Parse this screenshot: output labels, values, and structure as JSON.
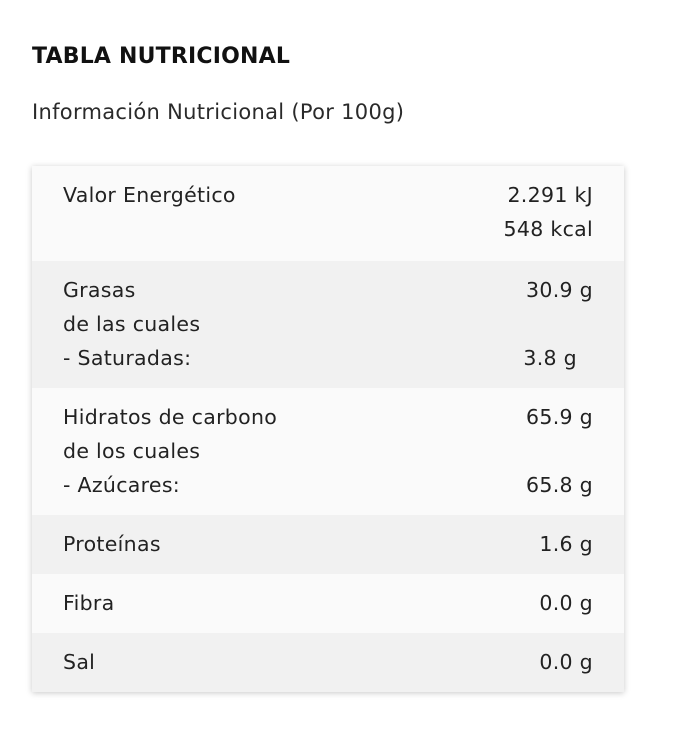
{
  "heading": "TABLA NUTRICIONAL",
  "subheading": "Información Nutricional (Por 100g)",
  "table": {
    "energy": {
      "label": "Valor Energético",
      "value_kj": "2.291 kJ",
      "value_kcal": "548 kcal"
    },
    "fat": {
      "label": "Grasas",
      "value": "30.9 g",
      "of_which": "de las cuales",
      "sub_label": "- Saturadas:",
      "sub_value": "3.8 g"
    },
    "carbs": {
      "label": "Hidratos de carbono",
      "value": "65.9 g",
      "of_which": "de los cuales",
      "sub_label": "- Azúcares:",
      "sub_value": "65.8 g"
    },
    "protein": {
      "label": "Proteínas",
      "value": "1.6 g"
    },
    "fiber": {
      "label": "Fibra",
      "value": "0.0 g"
    },
    "salt": {
      "label": "Sal",
      "value": "0.0 g"
    }
  }
}
